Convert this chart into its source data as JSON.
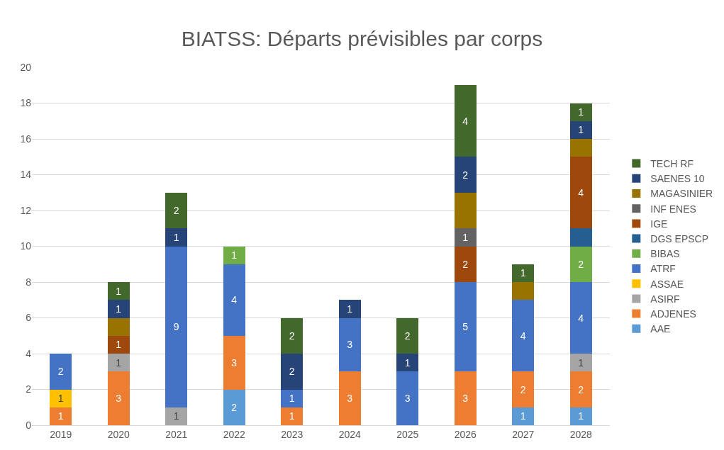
{
  "chart_data": {
    "type": "bar",
    "title": "BIATSS: Départs prévisibles par corps",
    "stacked": true,
    "categories": [
      "2019",
      "2020",
      "2021",
      "2022",
      "2023",
      "2024",
      "2025",
      "2026",
      "2027",
      "2028"
    ],
    "ylim": [
      0,
      20
    ],
    "yticks": [
      0,
      2,
      4,
      6,
      8,
      10,
      12,
      14,
      16,
      18,
      20
    ],
    "grid": "y",
    "legend": "right",
    "series": [
      {
        "name": "AAE",
        "color": "#5b9bd5",
        "values": [
          0,
          0,
          0,
          2,
          0,
          0,
          0,
          0,
          1,
          1
        ],
        "value_labels": [
          null,
          null,
          null,
          "2",
          null,
          null,
          null,
          null,
          "1",
          "1"
        ]
      },
      {
        "name": "ADJENES",
        "color": "#ed7d31",
        "values": [
          1,
          3,
          0,
          3,
          1,
          3,
          0,
          3,
          2,
          2
        ],
        "value_labels": [
          "1",
          "3",
          null,
          "3",
          "1",
          "3",
          null,
          "3",
          "2",
          "2"
        ]
      },
      {
        "name": "ASIRF",
        "color": "#a5a5a5",
        "values": [
          0,
          1,
          1,
          0,
          0,
          0,
          0,
          0,
          0,
          1
        ],
        "value_labels": [
          null,
          "1",
          "1",
          null,
          null,
          null,
          null,
          null,
          null,
          "1"
        ]
      },
      {
        "name": "ASSAE",
        "color": "#ffc000",
        "values": [
          1,
          0,
          0,
          0,
          0,
          0,
          0,
          0,
          0,
          0
        ],
        "value_labels": [
          "1",
          null,
          null,
          null,
          null,
          null,
          null,
          null,
          null,
          null
        ]
      },
      {
        "name": "ATRF",
        "color": "#4472c4",
        "values": [
          2,
          0,
          9,
          4,
          1,
          3,
          3,
          5,
          4,
          4
        ],
        "value_labels": [
          "2",
          null,
          "9",
          "4",
          "1",
          "3",
          "3",
          "5",
          "4",
          "4"
        ]
      },
      {
        "name": "BIBAS",
        "color": "#70ad47",
        "values": [
          0,
          0,
          0,
          1,
          0,
          0,
          0,
          0,
          0,
          2
        ],
        "value_labels": [
          null,
          null,
          null,
          "1",
          null,
          null,
          null,
          null,
          null,
          "2"
        ]
      },
      {
        "name": "DGS EPSCP",
        "color": "#255e91",
        "values": [
          0,
          0,
          0,
          0,
          0,
          0,
          0,
          0,
          0,
          1
        ],
        "value_labels": [
          null,
          null,
          null,
          null,
          null,
          null,
          null,
          null,
          null,
          null
        ]
      },
      {
        "name": "IGE",
        "color": "#9e480e",
        "values": [
          0,
          1,
          0,
          0,
          0,
          0,
          0,
          2,
          0,
          4
        ],
        "value_labels": [
          null,
          "1",
          null,
          null,
          null,
          null,
          null,
          "2",
          null,
          "4"
        ]
      },
      {
        "name": "INF ENES",
        "color": "#636363",
        "values": [
          0,
          0,
          0,
          0,
          0,
          0,
          0,
          1,
          0,
          0
        ],
        "value_labels": [
          null,
          null,
          null,
          null,
          null,
          null,
          null,
          "1",
          null,
          null
        ]
      },
      {
        "name": "MAGASINIER",
        "color": "#997300",
        "values": [
          0,
          1,
          0,
          0,
          0,
          0,
          0,
          2,
          1,
          1
        ],
        "value_labels": [
          null,
          null,
          null,
          null,
          null,
          null,
          null,
          null,
          null,
          null
        ]
      },
      {
        "name": "SAENES 10",
        "color": "#264478",
        "values": [
          0,
          1,
          1,
          0,
          2,
          1,
          1,
          2,
          0,
          1
        ],
        "value_labels": [
          null,
          "1",
          "1",
          null,
          "2",
          "1",
          "1",
          "2",
          null,
          "1"
        ]
      },
      {
        "name": "TECH RF",
        "color": "#43682b",
        "values": [
          0,
          1,
          2,
          0,
          2,
          0,
          2,
          4,
          1,
          1
        ],
        "value_labels": [
          null,
          "1",
          "2",
          null,
          "2",
          null,
          "2",
          "4",
          "1",
          "1"
        ]
      }
    ]
  }
}
